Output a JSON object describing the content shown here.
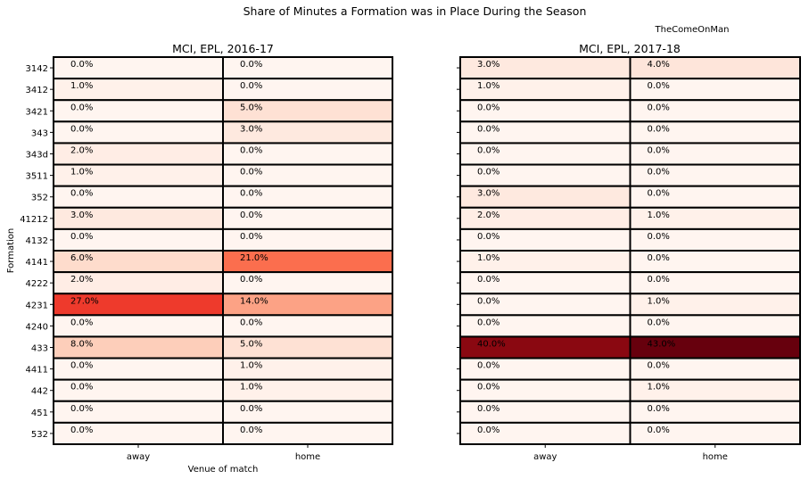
{
  "figure": {
    "suptitle": "Share of Minutes a Formation was in Place During the Season",
    "credit": "TheComeOnMan"
  },
  "chart_data": [
    {
      "type": "heatmap",
      "title": "MCI, EPL, 2016-17",
      "xlabel": "Venue of match",
      "ylabel": "Formation",
      "colormap": "Reds",
      "value_range": [
        0,
        43
      ],
      "x_categories": [
        "away",
        "home"
      ],
      "y_categories": [
        "3142",
        "3412",
        "3421",
        "343",
        "343d",
        "3511",
        "352",
        "41212",
        "4132",
        "4141",
        "4222",
        "4231",
        "4240",
        "433",
        "4411",
        "442",
        "451",
        "532"
      ],
      "values": [
        [
          0,
          0
        ],
        [
          1,
          0
        ],
        [
          0,
          5
        ],
        [
          0,
          3
        ],
        [
          2,
          0
        ],
        [
          1,
          0
        ],
        [
          0,
          0
        ],
        [
          3,
          0
        ],
        [
          0,
          0
        ],
        [
          6,
          21
        ],
        [
          2,
          0
        ],
        [
          27,
          14
        ],
        [
          0,
          0
        ],
        [
          8,
          5
        ],
        [
          0,
          1
        ],
        [
          0,
          1
        ],
        [
          0,
          0
        ],
        [
          0,
          0
        ]
      ],
      "value_format": "{v}.0%"
    },
    {
      "type": "heatmap",
      "title": "MCI, EPL, 2017-18",
      "xlabel": "",
      "ylabel": "",
      "colormap": "Reds",
      "value_range": [
        0,
        43
      ],
      "x_categories": [
        "away",
        "home"
      ],
      "y_categories": [
        "3142",
        "3412",
        "3421",
        "343",
        "343d",
        "3511",
        "352",
        "41212",
        "4132",
        "4141",
        "4222",
        "4231",
        "4240",
        "433",
        "4411",
        "442",
        "451",
        "532"
      ],
      "values": [
        [
          3,
          4
        ],
        [
          1,
          0
        ],
        [
          0,
          0
        ],
        [
          0,
          0
        ],
        [
          0,
          0
        ],
        [
          0,
          0
        ],
        [
          3,
          0
        ],
        [
          2,
          1
        ],
        [
          0,
          0
        ],
        [
          1,
          0
        ],
        [
          0,
          0
        ],
        [
          0,
          1
        ],
        [
          0,
          0
        ],
        [
          40,
          43
        ],
        [
          0,
          0
        ],
        [
          0,
          1
        ],
        [
          0,
          0
        ],
        [
          0,
          0
        ]
      ],
      "value_format": "{v}.0%"
    }
  ]
}
